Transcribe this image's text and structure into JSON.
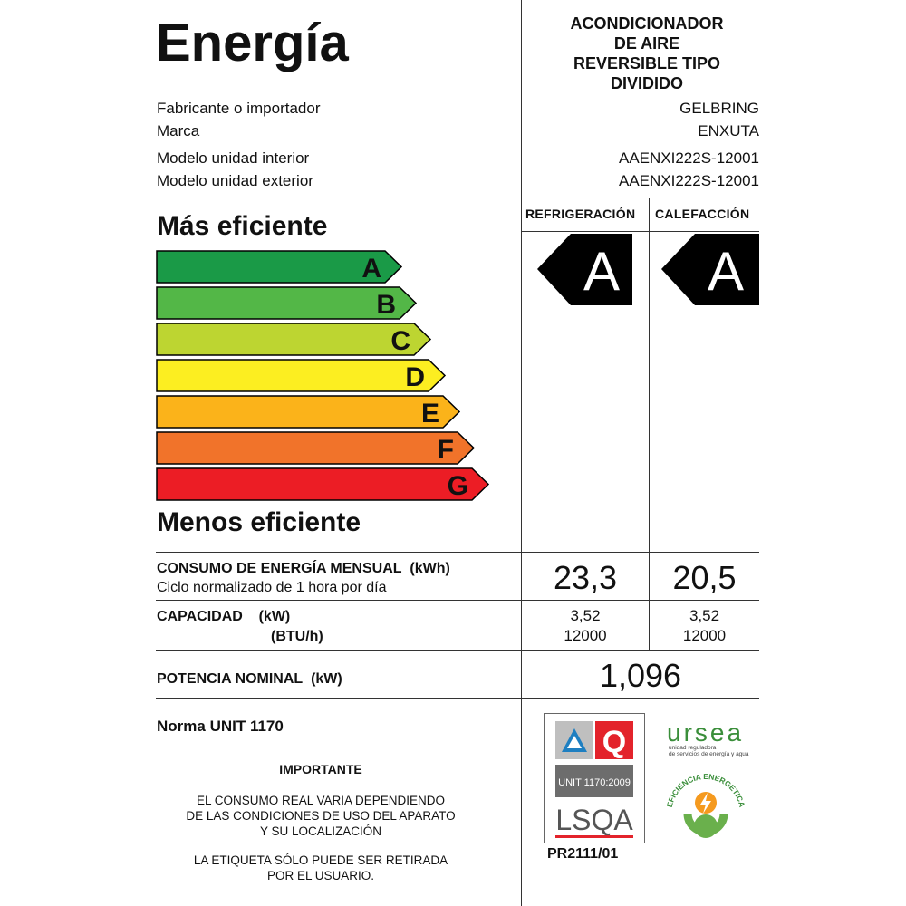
{
  "header": {
    "title": "Energía",
    "product_type": [
      "ACONDICIONADOR",
      "DE AIRE",
      "REVERSIBLE TIPO",
      "DIVIDIDO"
    ]
  },
  "info": [
    {
      "label": "Fabricante o importador",
      "value": "GELBRING"
    },
    {
      "label": "Marca",
      "value": "ENXUTA"
    },
    {
      "label": "Modelo unidad interior",
      "value": "AAENXI222S-12001"
    },
    {
      "label": "Modelo unidad exterior",
      "value": "AAENXI222S-12001"
    }
  ],
  "columns": {
    "cooling": "REFRIGERACIÓN",
    "heating": "CALEFACCIÓN"
  },
  "scale": {
    "most_efficient": "Más eficiente",
    "least_efficient": "Menos eficiente",
    "classes": [
      {
        "letter": "A",
        "color": "#1a9a47"
      },
      {
        "letter": "B",
        "color": "#53b747"
      },
      {
        "letter": "C",
        "color": "#bdd531"
      },
      {
        "letter": "D",
        "color": "#fcee21"
      },
      {
        "letter": "E",
        "color": "#fbb31a"
      },
      {
        "letter": "F",
        "color": "#f1732a"
      },
      {
        "letter": "G",
        "color": "#ec1d25"
      }
    ]
  },
  "rating": {
    "cooling": "A",
    "heating": "A"
  },
  "consumption": {
    "label": "CONSUMO DE ENERGÍA MENSUAL",
    "unit": "(kWh)",
    "sub": "Ciclo normalizado de 1 hora por día",
    "cooling": "23,3",
    "heating": "20,5"
  },
  "capacity": {
    "label": "CAPACIDAD",
    "unit_kw": "(kW)",
    "unit_btu": "(BTU/h)",
    "cooling_kw": "3,52",
    "cooling_btu": "12000",
    "heating_kw": "3,52",
    "heating_btu": "12000"
  },
  "power": {
    "label": "POTENCIA NOMINAL",
    "unit": "(kW)",
    "value": "1,096"
  },
  "norma": "Norma UNIT 1170",
  "importante": {
    "title": "IMPORTANTE",
    "notice1": [
      "EL CONSUMO REAL VARIA DEPENDIENDO",
      "DE LAS CONDICIONES DE USO DEL APARATO",
      "Y SU LOCALIZACIÓN"
    ],
    "notice2": [
      "LA ETIQUETA SÓLO PUEDE SER RETIRADA",
      "POR EL USUARIO."
    ]
  },
  "cert": {
    "lsqa_band": "UNIT 1170:2009",
    "lsqa_logo": "LSQA",
    "q_logo": "Q",
    "code": "PR2111/01"
  },
  "ursea": {
    "logo": "ursea",
    "sub1": "unidad reguladora",
    "sub2": "de servicios de energía y agua",
    "seal_text": "EFICIENCIA ENERGETICA"
  }
}
